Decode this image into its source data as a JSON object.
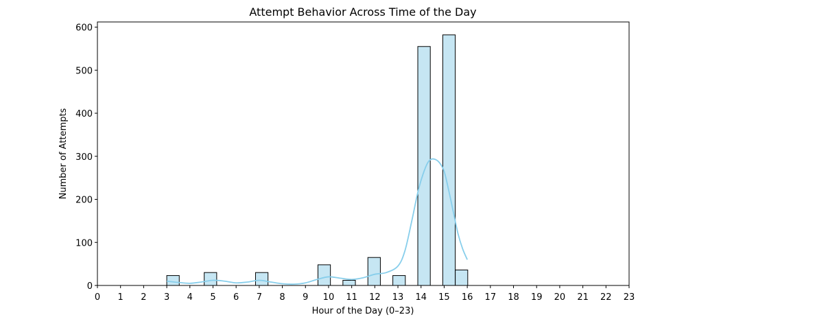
{
  "chart_data": {
    "type": "bar",
    "title": "Attempt Behavior Across Time of the Day",
    "xlabel": "Hour of the Day (0–23)",
    "ylabel": "Number of Attempts",
    "xlim": [
      0,
      23
    ],
    "ylim": [
      0,
      612
    ],
    "x_ticks": [
      "0",
      "1",
      "2",
      "3",
      "4",
      "5",
      "6",
      "7",
      "8",
      "9",
      "10",
      "11",
      "12",
      "13",
      "14",
      "15",
      "16",
      "17",
      "18",
      "19",
      "20",
      "21",
      "22",
      "23"
    ],
    "y_ticks": [
      "0",
      "100",
      "200",
      "300",
      "400",
      "500",
      "600"
    ],
    "bars": [
      {
        "x_start": 3.0,
        "x_end": 3.54,
        "value": 23
      },
      {
        "x_start": 4.62,
        "x_end": 5.16,
        "value": 30
      },
      {
        "x_start": 6.84,
        "x_end": 7.38,
        "value": 30
      },
      {
        "x_start": 9.54,
        "x_end": 10.08,
        "value": 48
      },
      {
        "x_start": 10.62,
        "x_end": 11.16,
        "value": 12
      },
      {
        "x_start": 11.7,
        "x_end": 12.24,
        "value": 65
      },
      {
        "x_start": 12.78,
        "x_end": 13.32,
        "value": 23
      },
      {
        "x_start": 13.86,
        "x_end": 14.4,
        "value": 555
      },
      {
        "x_start": 14.94,
        "x_end": 15.48,
        "value": 582
      },
      {
        "x_start": 15.48,
        "x_end": 16.02,
        "value": 36
      }
    ],
    "kde_line": {
      "x": [
        3,
        3.5,
        4,
        4.5,
        5,
        5.5,
        6,
        6.5,
        7,
        7.5,
        8,
        8.5,
        9,
        9.5,
        10,
        10.5,
        11,
        11.5,
        12,
        12.5,
        13,
        13.3,
        13.6,
        13.9,
        14.2,
        14.4,
        14.6,
        14.8,
        15.0,
        15.2,
        15.4,
        15.6,
        15.8,
        16.0
      ],
      "y": [
        10,
        7,
        5,
        8,
        12,
        10,
        6,
        8,
        12,
        8,
        4,
        3,
        6,
        14,
        20,
        17,
        14,
        18,
        26,
        30,
        45,
        80,
        150,
        225,
        275,
        292,
        293,
        285,
        265,
        220,
        170,
        120,
        85,
        60
      ]
    },
    "grid": false,
    "colors": {
      "bar_fill": "#c6e6f3",
      "bar_edge": "#000000",
      "kde_line": "#87ceeb"
    }
  }
}
